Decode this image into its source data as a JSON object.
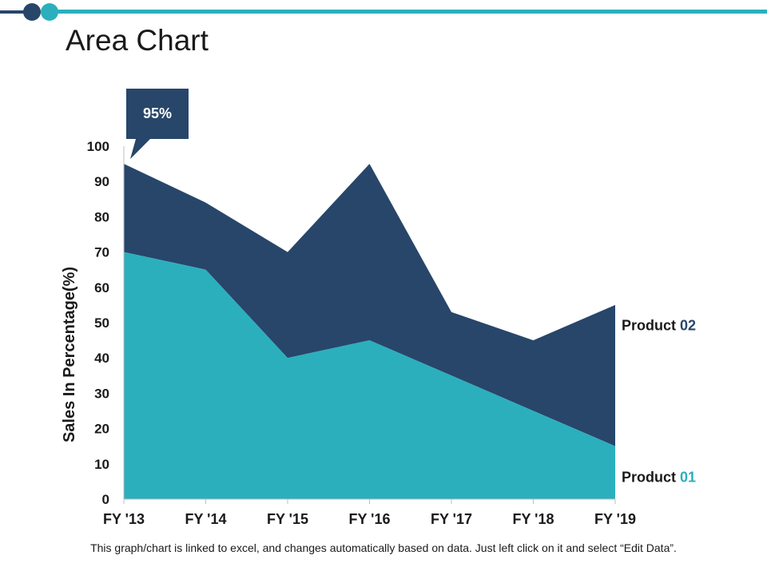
{
  "slide": {
    "title": "Area Chart",
    "footer": "This graph/chart is linked to excel, and changes automatically based on data. Just left click on it and select “Edit Data”."
  },
  "colors": {
    "product01": "#2bafbd",
    "product02": "#27466a",
    "accent_dark": "#27466a",
    "accent_teal": "#2bafbd"
  },
  "chart_data": {
    "type": "area",
    "stacked": true,
    "categories": [
      "FY '13",
      "FY '14",
      "FY '15",
      "FY '16",
      "FY '17",
      "FY '18",
      "FY '19"
    ],
    "series": [
      {
        "name": "Product 01",
        "name_prefix": "Product ",
        "name_number": "01",
        "values": [
          70,
          65,
          40,
          45,
          35,
          25,
          15
        ]
      },
      {
        "name": "Product 02",
        "name_prefix": "Product ",
        "name_number": "02",
        "values": [
          25,
          19,
          30,
          50,
          18,
          20,
          40
        ]
      }
    ],
    "ylabel": "Sales In Percentage(%)",
    "xlabel": "",
    "ylim": [
      0,
      100
    ],
    "yticks": [
      0,
      10,
      20,
      30,
      40,
      50,
      60,
      70,
      80,
      90,
      100
    ],
    "callout": {
      "category": "FY '13",
      "label": "95%"
    },
    "grid": false,
    "legend": "right, inline labels"
  }
}
